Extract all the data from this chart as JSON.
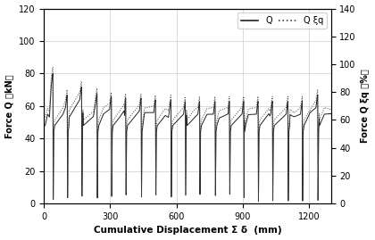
{
  "xlabel": "Cumulative Displacement Σ δ  (mm)",
  "ylabel_left": "Force Q （kN）",
  "ylabel_right": "Force Q ξq （%）",
  "xlim": [
    0,
    1300
  ],
  "ylim_left": [
    0,
    120
  ],
  "ylim_right": [
    0,
    140
  ],
  "yticks_left": [
    0,
    20,
    40,
    60,
    80,
    100,
    120
  ],
  "yticks_right": [
    0,
    20,
    40,
    60,
    80,
    100,
    120,
    140
  ],
  "xticks": [
    0,
    300,
    600,
    900,
    1200
  ],
  "line_color_solid": "#222222",
  "line_color_dashed": "#444444",
  "grid_color": "#cccccc",
  "bg_color": "#ffffff",
  "spike_positions": [
    40,
    105,
    170,
    240,
    305,
    370,
    440,
    505,
    575,
    640,
    705,
    775,
    840,
    905,
    970,
    1035,
    1105,
    1170,
    1240
  ],
  "base_Q": 50,
  "base_ratio": 62,
  "spike_heights_Q": [
    80,
    67,
    72,
    68,
    66,
    65,
    65,
    64,
    64,
    63,
    63,
    63,
    63,
    63,
    63,
    63,
    63,
    63,
    67
  ],
  "spike_heights_ratio": [
    98,
    82,
    88,
    83,
    80,
    79,
    79,
    78,
    78,
    77,
    77,
    77,
    77,
    77,
    77,
    77,
    77,
    77,
    82
  ]
}
